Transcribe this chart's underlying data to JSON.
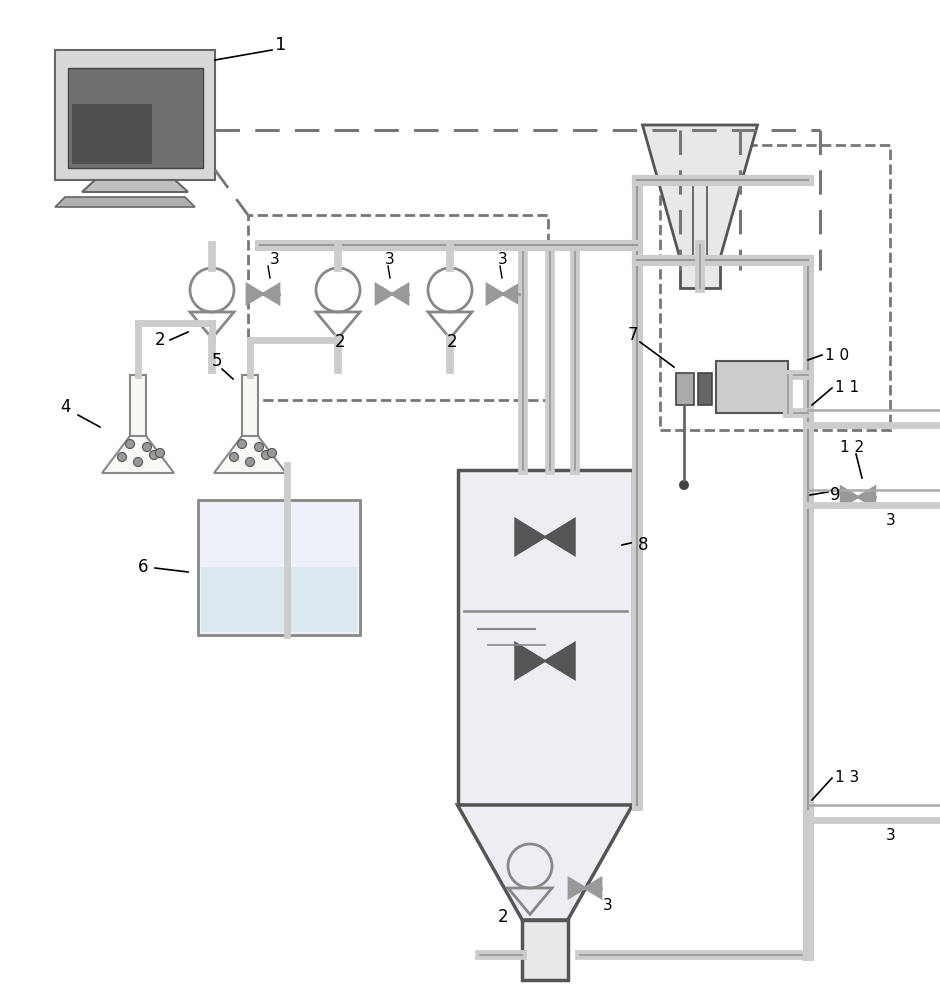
{
  "bg_color": "#ffffff",
  "line_color": "#888888",
  "dark_line": "#555555",
  "dashed_color": "#777777",
  "fill_light": "#e8e8e8",
  "reactor_fill": "#f0ecf4",
  "water_fill": "#e8eef4",
  "pipe_lt": "#cccccc",
  "pipe_dk": "#999999"
}
